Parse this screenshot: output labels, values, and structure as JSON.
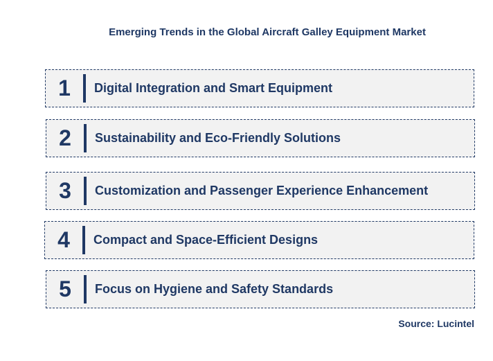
{
  "title": "Emerging Trends in the Global Aircraft Galley Equipment Market",
  "trends": [
    {
      "number": "1",
      "label": "Digital Integration and Smart Equipment"
    },
    {
      "number": "2",
      "label": "Sustainability and Eco-Friendly Solutions"
    },
    {
      "number": "3",
      "label": "Customization and Passenger Experience Enhancement"
    },
    {
      "number": "4",
      "label": "Compact and Space-Efficient Designs"
    },
    {
      "number": "5",
      "label": "Focus on Hygiene and Safety Standards"
    }
  ],
  "source": "Source: Lucintel"
}
